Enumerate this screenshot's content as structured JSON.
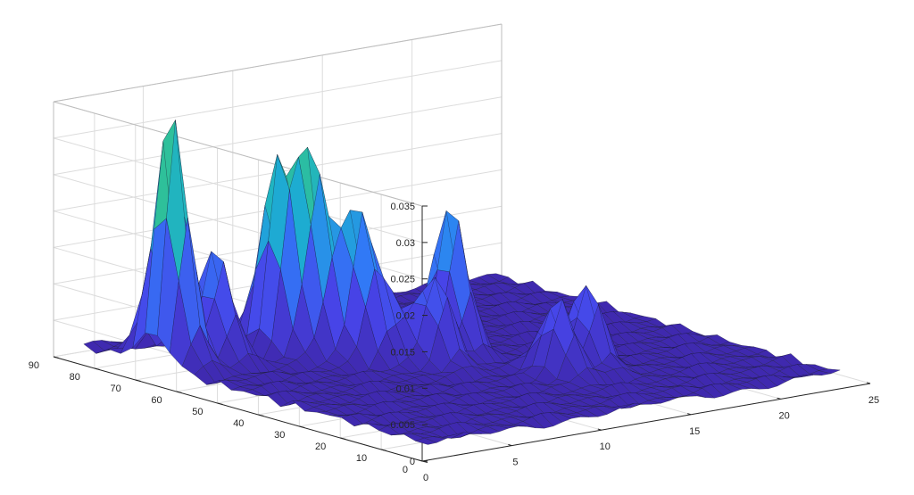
{
  "chart_data": {
    "type": "surface",
    "title": "",
    "xlabel": "",
    "ylabel": "",
    "zlabel": "",
    "grid": true,
    "xlim": [
      0,
      25
    ],
    "ylim": [
      0,
      90
    ],
    "zlim": [
      0,
      0.035
    ],
    "x_ticks": [
      "0",
      "5",
      "10",
      "15",
      "20",
      "25"
    ],
    "y_ticks": [
      "0",
      "10",
      "20",
      "30",
      "40",
      "50",
      "60",
      "70",
      "80",
      "90"
    ],
    "z_ticks": [
      "0",
      "0.005",
      "0.01",
      "0.015",
      "0.02",
      "0.025",
      "0.03",
      "0.035"
    ],
    "colormap": [
      "#3e26a8",
      "#4744e8",
      "#2f7ef7",
      "#1cb0ce",
      "#2ec09a",
      "#87c653",
      "#f9d62b"
    ],
    "baseline_level": 0.0015,
    "peaks": [
      {
        "x": 2,
        "y": 70,
        "z": 0.0345
      },
      {
        "x": 4,
        "y": 68,
        "z": 0.0155
      },
      {
        "x": 7,
        "y": 66,
        "z": 0.0255
      },
      {
        "x": 8,
        "y": 62,
        "z": 0.026
      },
      {
        "x": 9,
        "y": 55,
        "z": 0.02
      },
      {
        "x": 10,
        "y": 52,
        "z": 0.008
      },
      {
        "x": 11,
        "y": 45,
        "z": 0.012
      },
      {
        "x": 13,
        "y": 50,
        "z": 0.0205
      },
      {
        "x": 14,
        "y": 28,
        "z": 0.0105
      },
      {
        "x": 16,
        "y": 30,
        "z": 0.0112
      }
    ]
  }
}
